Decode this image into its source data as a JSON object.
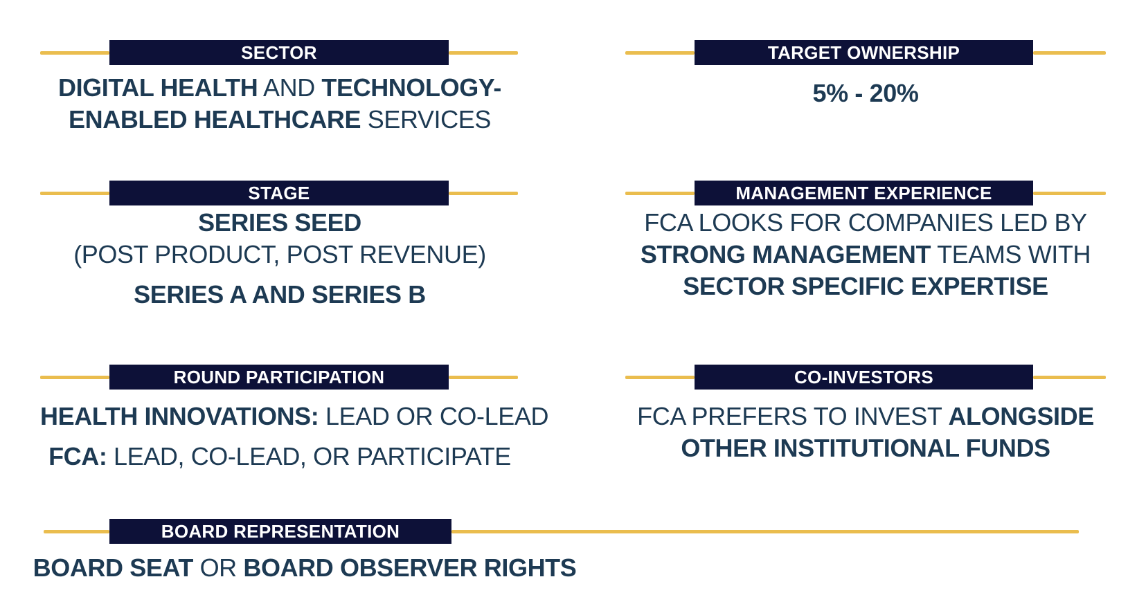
{
  "colors": {
    "bar_navy": "#0d1138",
    "accent_gold": "#eabd4e",
    "body_text_navy": "#1d3a53",
    "header_text": "#ffffff",
    "background": "#ffffff"
  },
  "sections": {
    "sector": {
      "header": "SECTOR",
      "lines": [
        {
          "segments": [
            {
              "text": "DIGITAL HEALTH",
              "bold": true
            },
            {
              "text": " AND ",
              "bold": false
            },
            {
              "text": "TECHNOLOGY-",
              "bold": true
            }
          ]
        },
        {
          "segments": [
            {
              "text": "ENABLED HEALTHCARE",
              "bold": true
            },
            {
              "text": " SERVICES",
              "bold": false
            }
          ]
        }
      ]
    },
    "target_ownership": {
      "header": "TARGET OWNERSHIP",
      "lines": [
        {
          "segments": [
            {
              "text": "5% - 20%",
              "bold": true
            }
          ]
        }
      ]
    },
    "stage": {
      "header": "STAGE",
      "lines": [
        {
          "segments": [
            {
              "text": "SERIES SEED",
              "bold": true
            }
          ]
        },
        {
          "segments": [
            {
              "text": "(POST PRODUCT, POST REVENUE)",
              "bold": false
            }
          ]
        },
        {
          "gap": true,
          "segments": [
            {
              "text": "SERIES A AND SERIES B",
              "bold": true
            }
          ]
        }
      ]
    },
    "management_experience": {
      "header": "MANAGEMENT EXPERIENCE",
      "lines": [
        {
          "segments": [
            {
              "text": "FCA LOOKS FOR COMPANIES LED BY",
              "bold": false
            }
          ]
        },
        {
          "segments": [
            {
              "text": "STRONG MANAGEMENT",
              "bold": true
            },
            {
              "text": " TEAMS WITH",
              "bold": false
            }
          ]
        },
        {
          "segments": [
            {
              "text": "SECTOR SPECIFIC EXPERTISE",
              "bold": true
            }
          ]
        }
      ]
    },
    "round_participation": {
      "header": "ROUND PARTICIPATION",
      "lines": [
        {
          "segments": [
            {
              "text": "HEALTH INNOVATIONS:",
              "bold": true
            },
            {
              "text": " LEAD OR CO-LEAD",
              "bold": false
            }
          ]
        },
        {
          "gap": true,
          "segments": [
            {
              "text": "FCA:",
              "bold": true
            },
            {
              "text": " LEAD, CO-LEAD, OR PARTICIPATE",
              "bold": false
            }
          ]
        }
      ]
    },
    "co_investors": {
      "header": "CO-INVESTORS",
      "lines": [
        {
          "segments": [
            {
              "text": "FCA PREFERS TO INVEST ",
              "bold": false
            },
            {
              "text": "ALONGSIDE",
              "bold": true
            }
          ]
        },
        {
          "segments": [
            {
              "text": "OTHER INSTITUTIONAL FUNDS",
              "bold": true
            }
          ]
        }
      ]
    },
    "board_representation": {
      "header": "BOARD REPRESENTATION",
      "lines": [
        {
          "segments": [
            {
              "text": "BOARD SEAT",
              "bold": true
            },
            {
              "text": " OR ",
              "bold": false
            },
            {
              "text": "BOARD OBSERVER RIGHTS",
              "bold": true
            }
          ]
        }
      ]
    }
  }
}
